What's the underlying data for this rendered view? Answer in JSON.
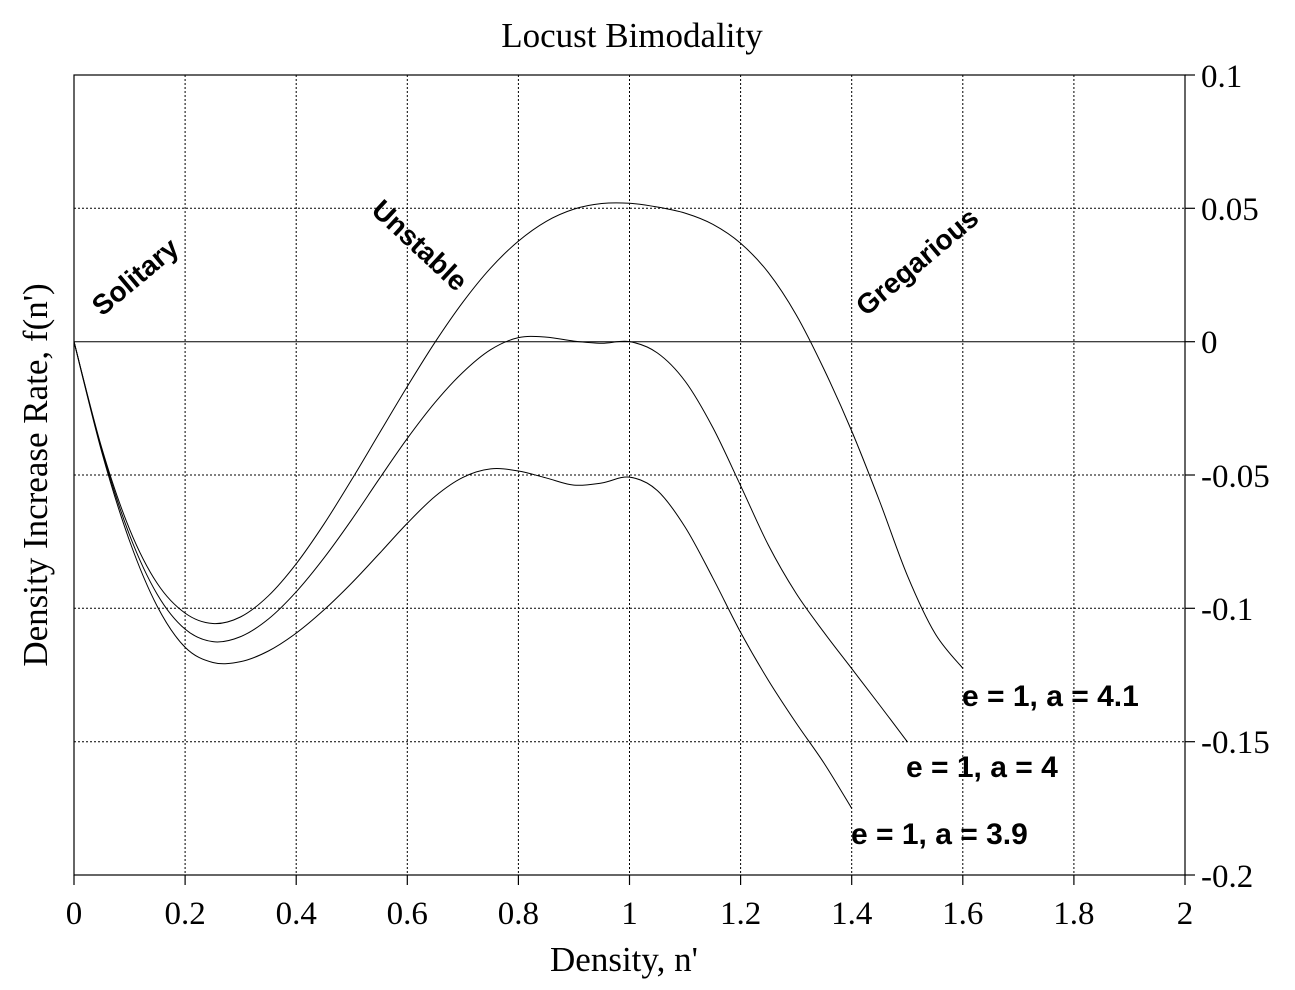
{
  "chart_data": {
    "type": "line",
    "title": "Locust Bimodality",
    "xlabel": "Density, n'",
    "ylabel": "Density Increase Rate, f(n')",
    "xlim": [
      0,
      2
    ],
    "ylim": [
      -0.2,
      0.1
    ],
    "x_ticks": [
      "0",
      "0.2",
      "0.4",
      "0.6",
      "0.8",
      "1",
      "1.2",
      "1.4",
      "1.6",
      "1.8",
      "2"
    ],
    "y_ticks": [
      "0.1",
      "0.05",
      "0",
      "-0.05",
      "-0.1",
      "-0.15",
      "-0.2"
    ],
    "y_axis_side": "right",
    "grid": true,
    "series": [
      {
        "name": "e = 1, a = 4.1",
        "x": [
          0,
          0.05,
          0.1,
          0.15,
          0.2,
          0.25,
          0.3,
          0.35,
          0.4,
          0.45,
          0.5,
          0.55,
          0.6,
          0.65,
          0.7,
          0.75,
          0.8,
          0.85,
          0.9,
          0.95,
          1.0,
          1.05,
          1.1,
          1.15,
          1.2,
          1.25,
          1.3,
          1.35,
          1.4,
          1.45,
          1.5,
          1.55,
          1.6
        ],
        "y": [
          0,
          -0.0399,
          -0.0703,
          -0.0907,
          -0.1018,
          -0.1057,
          -0.1032,
          -0.0953,
          -0.0833,
          -0.0684,
          -0.0517,
          -0.0342,
          -0.0168,
          -0.0002,
          0.0148,
          0.0276,
          0.0377,
          0.0451,
          0.0497,
          0.0518,
          0.0519,
          0.0505,
          0.0482,
          0.044,
          0.0369,
          0.0259,
          0.0101,
          -0.0103,
          -0.0335,
          -0.0597,
          -0.0876,
          -0.1094,
          -0.1225
        ]
      },
      {
        "name": "e = 1, a = 4",
        "x": [
          0,
          0.05,
          0.1,
          0.15,
          0.2,
          0.25,
          0.3,
          0.35,
          0.4,
          0.45,
          0.5,
          0.55,
          0.6,
          0.65,
          0.7,
          0.75,
          0.8,
          0.85,
          0.9,
          0.95,
          1.0,
          1.05,
          1.1,
          1.15,
          1.2,
          1.25,
          1.3,
          1.35,
          1.4,
          1.45,
          1.5
        ],
        "y": [
          0,
          -0.0406,
          -0.0725,
          -0.0948,
          -0.1078,
          -0.1125,
          -0.1106,
          -0.104,
          -0.0938,
          -0.0811,
          -0.0667,
          -0.0513,
          -0.0363,
          -0.0228,
          -0.0115,
          -0.003,
          0.0015,
          0.0017,
          0.0002,
          -0.0006,
          0,
          -0.0042,
          -0.0148,
          -0.0322,
          -0.054,
          -0.0763,
          -0.0944,
          -0.109,
          -0.1226,
          -0.1362,
          -0.15
        ]
      },
      {
        "name": "e = 1, a = 3.9",
        "x": [
          0,
          0.05,
          0.1,
          0.15,
          0.2,
          0.25,
          0.3,
          0.35,
          0.4,
          0.45,
          0.5,
          0.55,
          0.6,
          0.65,
          0.7,
          0.75,
          0.8,
          0.85,
          0.9,
          0.95,
          1.0,
          1.05,
          1.1,
          1.15,
          1.2,
          1.25,
          1.3,
          1.35,
          1.4
        ],
        "y": [
          0,
          -0.0414,
          -0.0747,
          -0.0993,
          -0.1146,
          -0.1203,
          -0.12,
          -0.116,
          -0.1093,
          -0.1006,
          -0.0905,
          -0.0794,
          -0.0681,
          -0.058,
          -0.0509,
          -0.0477,
          -0.0485,
          -0.0511,
          -0.0538,
          -0.053,
          -0.0508,
          -0.0558,
          -0.0695,
          -0.0886,
          -0.109,
          -0.127,
          -0.143,
          -0.158,
          -0.175
        ]
      }
    ],
    "annotations": [
      "Solitary",
      "Unstable",
      "Gregarious"
    ]
  }
}
